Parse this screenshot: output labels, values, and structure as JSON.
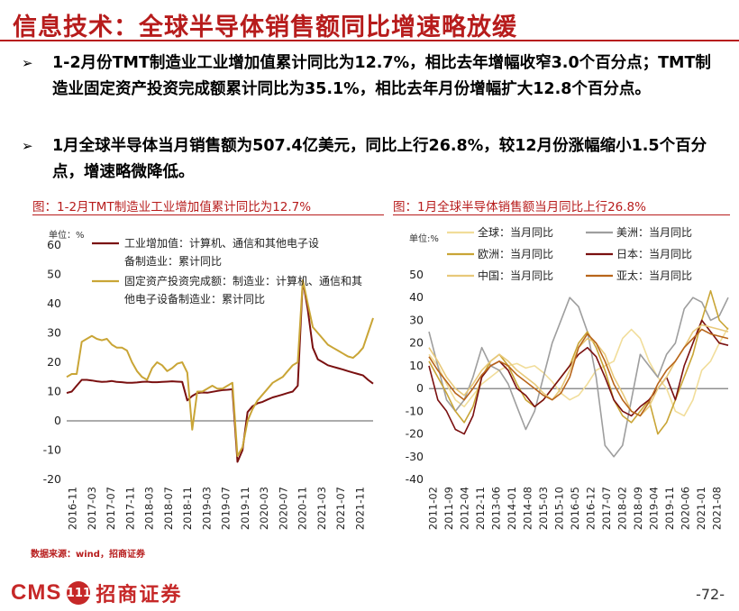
{
  "title": "信息技术：全球半导体销售额同比增速略放缓",
  "bullets": [
    {
      "arrow": "➢",
      "text": "1-2月份TMT制造业工业增加值累计同比为12.7%，相比去年增幅收窄3.0个百分点；TMT制造业固定资产投资完成额累计同比为35.1%，相比去年月份增幅扩大12.8个百分点。"
    },
    {
      "arrow": "➢",
      "text": "1月全球半导体当月销售额为507.4亿美元，同比上行26.8%，较12月份涨幅缩小1.5个百分点，增速略微降低。"
    }
  ],
  "source": "数据来源：wind，招商证券",
  "footer": {
    "logo_text": "CMS",
    "logo_mark": "111",
    "logo_cn": "招商证券",
    "page": "-72-"
  },
  "colors": {
    "accent": "#b71c1c",
    "dark_red": "#7a1010",
    "gold": "#c9a536",
    "gray": "#9e9e9e",
    "light_gold": "#f1dd9a",
    "orange_brown": "#b8651b",
    "brown": "#8b4513"
  },
  "chart_data": [
    {
      "type": "line",
      "title": "图：1-2月TMT制造业工业增加值累计同比为12.7%",
      "unit": "单位：%",
      "ylim": [
        -20,
        60
      ],
      "yticks": [
        "-20",
        "-10",
        "0",
        "10",
        "20",
        "30",
        "40",
        "50",
        "60"
      ],
      "xticks": [
        "2016-11",
        "2017-03",
        "2017-07",
        "2017-11",
        "2018-03",
        "2018-07",
        "2018-11",
        "2019-03",
        "2019-07",
        "2019-11",
        "2020-03",
        "2020-07",
        "2020-11",
        "2021-03",
        "2021-07",
        "2021-11"
      ],
      "legend_position": "top-right",
      "series": [
        {
          "name": "工业增加值：计算机、通信和其他电子设备制造业：累计同比",
          "color": "#7a1010",
          "values": [
            9.5,
            10,
            12,
            14,
            14,
            13.8,
            13.5,
            13.3,
            13.4,
            13.6,
            13.3,
            13.2,
            13,
            13,
            13.1,
            13.3,
            13.4,
            13.2,
            13.2,
            13.3,
            13.4,
            13.5,
            13.4,
            13.3,
            7,
            8.5,
            9.5,
            9.7,
            9.6,
            9.9,
            10.2,
            10.5,
            10.6,
            10.8,
            -14,
            -10,
            3,
            5,
            6,
            6.5,
            7.3,
            8,
            8.5,
            9,
            9.5,
            10,
            12,
            48,
            38,
            25,
            21,
            20,
            19,
            18.5,
            18,
            17.5,
            17,
            16.5,
            16,
            15.5,
            14,
            12.7
          ]
        },
        {
          "name": "固定资产投资完成额：制造业：计算机、通信和其他电子设备制造业：累计同比",
          "color": "#c9a536",
          "values": [
            15,
            16,
            16,
            27,
            28,
            29,
            28,
            27.5,
            28,
            26,
            25,
            25,
            24,
            20,
            17,
            15,
            14,
            18,
            20,
            19,
            17,
            18,
            19.5,
            20,
            16.5,
            -3,
            10,
            10,
            11,
            12,
            11,
            11,
            12,
            13,
            -12,
            -9,
            0,
            4,
            7,
            9,
            11,
            13,
            14,
            15,
            17,
            19,
            20,
            48,
            40,
            32,
            30,
            28,
            26,
            25,
            24,
            23,
            22,
            21.5,
            23,
            25,
            30,
            35.1
          ]
        }
      ]
    },
    {
      "type": "line",
      "title": "图：1月全球半导体销售额当月同比上行26.8%",
      "unit": "单位:%",
      "ylim": [
        -40,
        50
      ],
      "yticks": [
        "-40",
        "-30",
        "-20",
        "-10",
        "0",
        "10",
        "20",
        "30",
        "40",
        "50"
      ],
      "xticks": [
        "2011-02",
        "2011-09",
        "2012-04",
        "2012-11",
        "2013-06",
        "2014-01",
        "2014-08",
        "2015-03",
        "2015-10",
        "2016-05",
        "2016-12",
        "2017-07",
        "2018-02",
        "2018-09",
        "2019-04",
        "2019-11",
        "2020-06",
        "2021-01",
        "2021-08"
      ],
      "legend_position": "top",
      "series": [
        {
          "name": "全球：当月同比",
          "color": "#f1dd9a",
          "values": [
            15,
            10,
            2,
            -5,
            -8,
            -3,
            2,
            5,
            8,
            10,
            11,
            9,
            10,
            7,
            3,
            -2,
            -5,
            -3,
            2,
            8,
            10,
            12,
            22,
            26,
            22,
            12,
            5,
            0,
            -10,
            -12,
            -5,
            8,
            12,
            20,
            26.8
          ]
        },
        {
          "name": "美洲：当月同比",
          "color": "#9e9e9e",
          "values": [
            25,
            10,
            -5,
            -10,
            -5,
            5,
            18,
            10,
            8,
            2,
            -8,
            -18,
            -10,
            5,
            20,
            30,
            40,
            36,
            25,
            5,
            -25,
            -30,
            -25,
            -5,
            15,
            10,
            5,
            15,
            20,
            35,
            40,
            38,
            30,
            32,
            40
          ]
        },
        {
          "name": "欧洲：当月同比",
          "color": "#c9a536",
          "values": [
            12,
            5,
            -2,
            -10,
            -15,
            -8,
            5,
            12,
            15,
            10,
            2,
            -5,
            -8,
            -5,
            0,
            5,
            10,
            20,
            25,
            18,
            8,
            -5,
            -12,
            -15,
            -10,
            -5,
            -20,
            -15,
            -5,
            5,
            15,
            30,
            43,
            30,
            26
          ]
        },
        {
          "name": "日本：当月同比",
          "color": "#7a1010",
          "values": [
            10,
            -5,
            -10,
            -18,
            -20,
            -12,
            5,
            10,
            12,
            8,
            0,
            -3,
            -8,
            -5,
            0,
            5,
            10,
            15,
            18,
            14,
            5,
            -5,
            -10,
            -12,
            -8,
            -5,
            0,
            5,
            -5,
            10,
            20,
            30,
            25,
            20,
            19
          ]
        },
        {
          "name": "中国：当月同比",
          "color": "#e8c97a",
          "values": [
            18,
            12,
            5,
            0,
            -3,
            2,
            8,
            12,
            15,
            12,
            8,
            5,
            2,
            -2,
            -5,
            0,
            8,
            18,
            22,
            20,
            15,
            5,
            -2,
            -10,
            -12,
            -8,
            0,
            5,
            12,
            18,
            25,
            28,
            27,
            26,
            25
          ]
        },
        {
          "name": "亚太：当月同比",
          "color": "#b8651b",
          "values": [
            14,
            8,
            3,
            -2,
            -5,
            0,
            6,
            10,
            12,
            10,
            6,
            3,
            0,
            -3,
            -5,
            -2,
            5,
            18,
            24,
            20,
            12,
            2,
            -5,
            -10,
            -12,
            -6,
            2,
            8,
            12,
            18,
            22,
            26,
            24,
            23,
            22
          ]
        }
      ]
    }
  ]
}
